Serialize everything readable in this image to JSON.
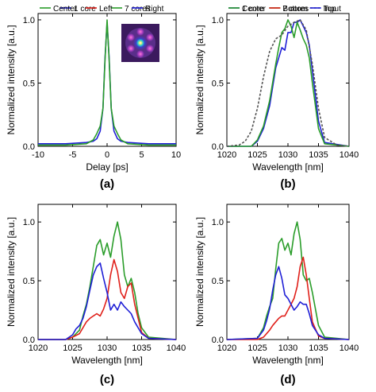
{
  "chart_data": [
    {
      "panel": "(a)",
      "type": "line",
      "xlabel": "Delay [ps]",
      "ylabel": "Normalized intensity [a.u.]",
      "xlim": [
        -10,
        10
      ],
      "ylim": [
        0,
        1.05
      ],
      "xticks": [
        -10,
        -5,
        0,
        5,
        10
      ],
      "yticks": [
        0.0,
        0.5,
        1.0
      ],
      "legend_position": "top",
      "inset": "mode-profile-image",
      "series": [
        {
          "name": "1 core",
          "color": "#1f1fd6",
          "x": [
            -10,
            -6,
            -3,
            -2,
            -1.5,
            -1,
            -0.6,
            -0.3,
            0,
            0.3,
            0.6,
            1,
            1.5,
            2,
            3,
            6,
            10
          ],
          "y": [
            0.02,
            0.02,
            0.03,
            0.04,
            0.06,
            0.12,
            0.3,
            0.7,
            0.98,
            0.7,
            0.3,
            0.12,
            0.06,
            0.04,
            0.03,
            0.02,
            0.02
          ]
        },
        {
          "name": "7 cores",
          "color": "#2a9d2a",
          "x": [
            -10,
            -6,
            -3,
            -2,
            -1.5,
            -1,
            -0.6,
            -0.3,
            0,
            0.3,
            0.6,
            1,
            1.5,
            2,
            3,
            6,
            10
          ],
          "y": [
            0.01,
            0.01,
            0.02,
            0.05,
            0.1,
            0.16,
            0.3,
            0.68,
            1.0,
            0.68,
            0.3,
            0.16,
            0.1,
            0.05,
            0.02,
            0.01,
            0.01
          ]
        }
      ]
    },
    {
      "panel": "(b)",
      "type": "line",
      "xlabel": "Wavelength [nm]",
      "ylabel": "Normalized intensity [a.u.]",
      "xlim": [
        1020,
        1040
      ],
      "ylim": [
        0,
        1.05
      ],
      "xticks": [
        1020,
        1025,
        1030,
        1035,
        1040
      ],
      "yticks": [
        0.0,
        0.5,
        1.0
      ],
      "legend_position": "top",
      "series": [
        {
          "name": "1 core",
          "color": "#1f1fd6",
          "x": [
            1020,
            1024,
            1025,
            1026,
            1027,
            1028,
            1028.5,
            1029,
            1029.5,
            1030,
            1030.5,
            1031,
            1031.5,
            1032,
            1032.5,
            1033,
            1033.5,
            1034,
            1035,
            1036,
            1040
          ],
          "y": [
            0,
            0,
            0.04,
            0.14,
            0.32,
            0.62,
            0.7,
            0.78,
            0.76,
            0.9,
            0.9,
            0.98,
            0.98,
            1.0,
            0.95,
            0.9,
            0.8,
            0.6,
            0.2,
            0.03,
            0
          ]
        },
        {
          "name": "7 cores",
          "color": "#2a9d2a",
          "x": [
            1020,
            1024,
            1025,
            1026,
            1027,
            1028,
            1028.5,
            1029,
            1029.5,
            1030,
            1030.5,
            1031,
            1031.5,
            1032,
            1032.5,
            1033,
            1033.5,
            1034,
            1035,
            1036,
            1040
          ],
          "y": [
            0,
            0,
            0.05,
            0.16,
            0.36,
            0.65,
            0.78,
            0.9,
            0.93,
            1.0,
            0.95,
            0.86,
            0.98,
            0.92,
            0.85,
            0.8,
            0.7,
            0.5,
            0.14,
            0.02,
            0
          ]
        },
        {
          "name": "Input",
          "color": "#555555",
          "dashed": true,
          "x": [
            1020,
            1022,
            1023,
            1024,
            1025,
            1026,
            1027,
            1028,
            1029,
            1030,
            1031,
            1032,
            1033,
            1034,
            1035,
            1036,
            1038,
            1040
          ],
          "y": [
            0,
            0.01,
            0.04,
            0.12,
            0.3,
            0.55,
            0.75,
            0.85,
            0.88,
            0.95,
            0.98,
            1.0,
            0.92,
            0.65,
            0.3,
            0.07,
            0.01,
            0
          ]
        }
      ]
    },
    {
      "panel": "(c)",
      "type": "line",
      "xlabel": "Wavelength [nm]",
      "ylabel": "Normalized intensity [a.u.]",
      "xlim": [
        1020,
        1040
      ],
      "ylim": [
        0,
        1.15
      ],
      "xticks": [
        1020,
        1025,
        1030,
        1035,
        1040
      ],
      "yticks": [
        0.0,
        0.5,
        1.0
      ],
      "legend_position": "top",
      "series": [
        {
          "name": "Center",
          "color": "#2a9d2a",
          "x": [
            1020,
            1024,
            1025,
            1026,
            1026.5,
            1027,
            1027.5,
            1028,
            1028.5,
            1029,
            1029.5,
            1030,
            1030.5,
            1031,
            1031.5,
            1032,
            1032.5,
            1033,
            1033.5,
            1034,
            1034.5,
            1035,
            1036,
            1040
          ],
          "y": [
            0,
            0,
            0.02,
            0.08,
            0.2,
            0.3,
            0.45,
            0.62,
            0.8,
            0.85,
            0.72,
            0.82,
            0.7,
            0.88,
            1.0,
            0.85,
            0.55,
            0.45,
            0.52,
            0.4,
            0.22,
            0.1,
            0.02,
            0
          ]
        },
        {
          "name": "Left",
          "color": "#e0201a",
          "x": [
            1020,
            1024,
            1025,
            1026,
            1027,
            1027.5,
            1028,
            1028.5,
            1029,
            1029.5,
            1030,
            1030.5,
            1031,
            1031.5,
            1032,
            1032.5,
            1033,
            1033.5,
            1034,
            1035,
            1036,
            1040
          ],
          "y": [
            0,
            0,
            0.02,
            0.05,
            0.15,
            0.18,
            0.2,
            0.22,
            0.2,
            0.26,
            0.35,
            0.55,
            0.68,
            0.58,
            0.4,
            0.35,
            0.45,
            0.48,
            0.3,
            0.06,
            0.01,
            0
          ]
        },
        {
          "name": "Right",
          "color": "#1f1fd6",
          "x": [
            1020,
            1024,
            1025,
            1025.5,
            1026,
            1026.5,
            1027,
            1027.5,
            1028,
            1028.5,
            1029,
            1029.5,
            1030,
            1030.5,
            1031,
            1031.5,
            1032,
            1032.5,
            1033,
            1033.5,
            1034,
            1035,
            1036,
            1040
          ],
          "y": [
            0,
            0,
            0.04,
            0.09,
            0.12,
            0.18,
            0.28,
            0.42,
            0.55,
            0.62,
            0.65,
            0.52,
            0.4,
            0.25,
            0.3,
            0.25,
            0.32,
            0.28,
            0.25,
            0.22,
            0.15,
            0.05,
            0.01,
            0
          ]
        }
      ]
    },
    {
      "panel": "(d)",
      "type": "line",
      "xlabel": "Wavelength [nm]",
      "ylabel": "Normalized intensity [a.u.]",
      "xlim": [
        1020,
        1040
      ],
      "ylim": [
        0,
        1.15
      ],
      "xticks": [
        1020,
        1025,
        1030,
        1035,
        1040
      ],
      "yticks": [
        0.0,
        0.5,
        1.0
      ],
      "legend_position": "top",
      "series": [
        {
          "name": "Center",
          "color": "#2a9d2a",
          "x": [
            1020,
            1025,
            1026,
            1026.5,
            1027,
            1027.5,
            1028,
            1028.5,
            1029,
            1029.5,
            1030,
            1030.5,
            1031,
            1031.5,
            1032,
            1032.5,
            1033,
            1033.5,
            1034,
            1035,
            1036,
            1040
          ],
          "y": [
            0,
            0.01,
            0.1,
            0.2,
            0.28,
            0.35,
            0.6,
            0.82,
            0.86,
            0.76,
            0.82,
            0.72,
            0.9,
            1.0,
            0.85,
            0.55,
            0.5,
            0.52,
            0.4,
            0.12,
            0.02,
            0
          ]
        },
        {
          "name": "Bottom",
          "color": "#e0201a",
          "x": [
            1020,
            1025,
            1026,
            1027,
            1027.5,
            1028,
            1028.5,
            1029,
            1029.5,
            1030,
            1030.5,
            1031,
            1031.5,
            1032,
            1032.5,
            1033,
            1033.5,
            1034,
            1035,
            1036,
            1040
          ],
          "y": [
            0,
            0,
            0.02,
            0.08,
            0.12,
            0.15,
            0.18,
            0.2,
            0.2,
            0.25,
            0.3,
            0.35,
            0.45,
            0.62,
            0.7,
            0.55,
            0.35,
            0.15,
            0.03,
            0.01,
            0
          ]
        },
        {
          "name": "Top",
          "color": "#1f1fd6",
          "x": [
            1020,
            1025,
            1026,
            1026.5,
            1027,
            1027.5,
            1028,
            1028.5,
            1029,
            1029.5,
            1030,
            1030.5,
            1031,
            1031.5,
            1032,
            1032.5,
            1033,
            1033.5,
            1034,
            1035,
            1036,
            1040
          ],
          "y": [
            0,
            0.01,
            0.08,
            0.16,
            0.26,
            0.42,
            0.55,
            0.62,
            0.52,
            0.38,
            0.35,
            0.3,
            0.25,
            0.28,
            0.32,
            0.3,
            0.3,
            0.22,
            0.12,
            0.04,
            0.01,
            0
          ]
        }
      ]
    }
  ]
}
